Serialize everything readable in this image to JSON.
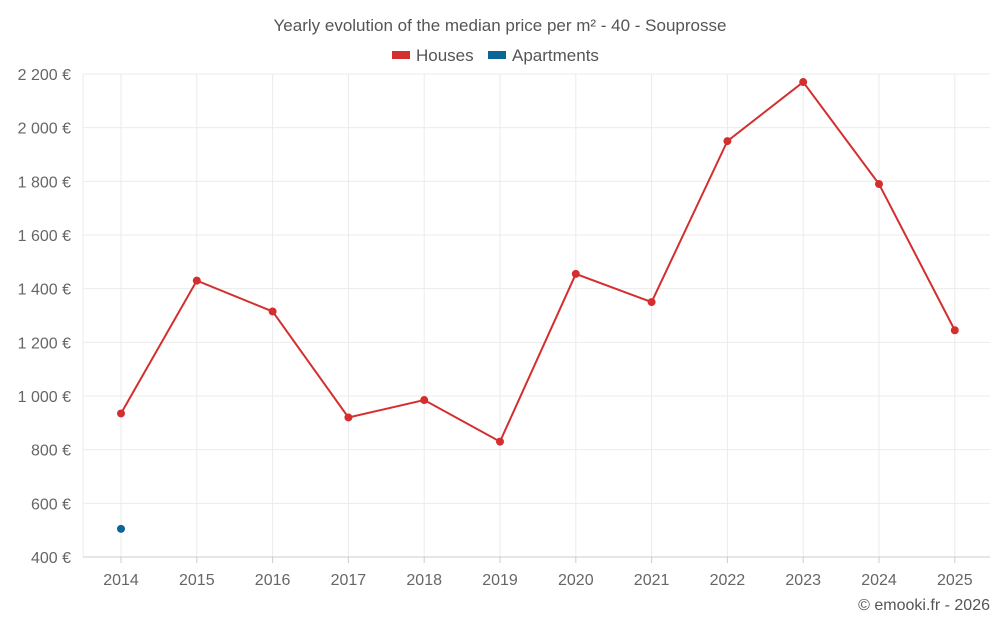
{
  "chart_data": {
    "type": "line",
    "title": "Yearly evolution of the median price per m² - 40 - Souprosse",
    "categories": [
      "2014",
      "2015",
      "2016",
      "2017",
      "2018",
      "2019",
      "2020",
      "2021",
      "2022",
      "2023",
      "2024",
      "2025"
    ],
    "series": [
      {
        "name": "Houses",
        "color": "#d32f2f",
        "values": [
          935,
          1430,
          1315,
          920,
          985,
          830,
          1455,
          1350,
          1950,
          2170,
          1790,
          1245
        ]
      },
      {
        "name": "Apartments",
        "color": "#0a6696",
        "values": [
          505,
          null,
          null,
          null,
          null,
          null,
          null,
          null,
          null,
          null,
          null,
          null
        ]
      }
    ],
    "ylim": [
      400,
      2200
    ],
    "yticks": [
      400,
      600,
      800,
      1000,
      1200,
      1400,
      1600,
      1800,
      2000,
      2200
    ],
    "ytick_labels": [
      "400 €",
      "600 €",
      "800 €",
      "1 000 €",
      "1 200 €",
      "1 400 €",
      "1 600 €",
      "1 800 €",
      "2 000 €",
      "2 200 €"
    ],
    "xlabel": "",
    "ylabel": "",
    "grid": true,
    "legend_position": "top-center"
  },
  "credit": "© emooki.fr - 2026"
}
